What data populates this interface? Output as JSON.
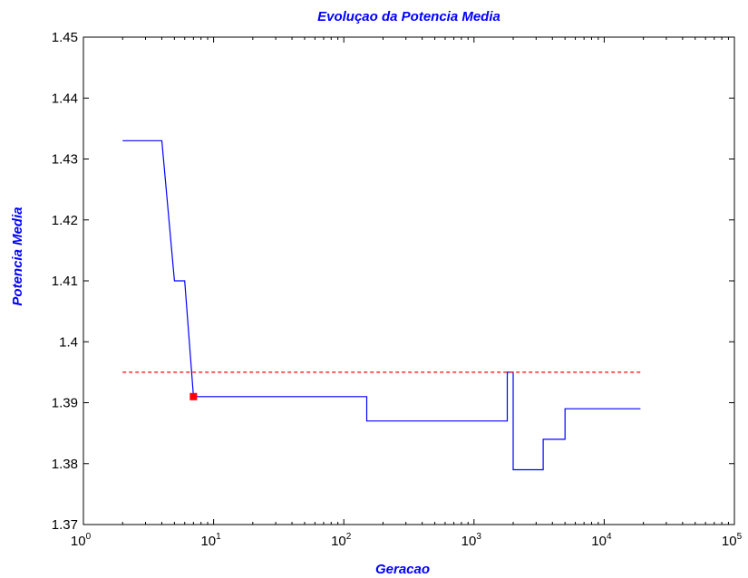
{
  "chart_data": {
    "type": "line",
    "title": "Evoluçao da Potencia Media",
    "xlabel": "Geracao",
    "ylabel": "Potencia Media",
    "xscale": "log",
    "xlim": [
      1,
      100000
    ],
    "ylim": [
      1.37,
      1.45
    ],
    "x_ticks": [
      {
        "base": "10",
        "exp": "0"
      },
      {
        "base": "10",
        "exp": "1"
      },
      {
        "base": "10",
        "exp": "2"
      },
      {
        "base": "10",
        "exp": "3"
      },
      {
        "base": "10",
        "exp": "4"
      },
      {
        "base": "10",
        "exp": "5"
      }
    ],
    "y_ticks": [
      "1.37",
      "1.38",
      "1.39",
      "1.4",
      "1.41",
      "1.42",
      "1.43",
      "1.44",
      "1.45"
    ],
    "grid": false,
    "series": [
      {
        "style": "solid-step",
        "color": "#0000ff",
        "points": [
          [
            2,
            1.433
          ],
          [
            4,
            1.433
          ],
          [
            5,
            1.41
          ],
          [
            6,
            1.41
          ],
          [
            7,
            1.391
          ],
          [
            150,
            1.391
          ],
          [
            150,
            1.387
          ],
          [
            1800,
            1.387
          ],
          [
            1800,
            1.395
          ],
          [
            2000,
            1.395
          ],
          [
            2000,
            1.379
          ],
          [
            3400,
            1.379
          ],
          [
            3400,
            1.384
          ],
          [
            5000,
            1.384
          ],
          [
            5000,
            1.389
          ],
          [
            19000,
            1.389
          ]
        ]
      },
      {
        "style": "dashed",
        "color": "#ff0000",
        "points": [
          [
            2,
            1.395
          ],
          [
            19000,
            1.395
          ]
        ]
      }
    ],
    "markers": [
      {
        "x": 7,
        "y": 1.391,
        "color": "#ff0000",
        "shape": "square"
      }
    ]
  }
}
